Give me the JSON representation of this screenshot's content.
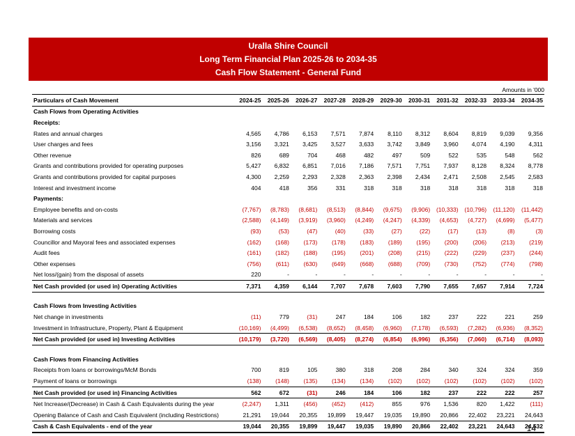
{
  "banner": {
    "line1": "Uralla Shire Council",
    "line2": "Long Term Financial Plan 2025-26 to 2034-35",
    "line3": "Cash Flow Statement - General Fund"
  },
  "units_note": "Amounts in '000",
  "columns": [
    "Particulars of Cash Movement",
    "2024-25",
    "2025-26",
    "2026-27",
    "2027-28",
    "2028-29",
    "2029-30",
    "2030-31",
    "2031-32",
    "2032-33",
    "2033-34",
    "2034-35"
  ],
  "rows": [
    {
      "type": "heading",
      "label": "Cash Flows from Operating Activities"
    },
    {
      "type": "heading",
      "label": "Receipts:"
    },
    {
      "type": "data",
      "label": "Rates and annual charges",
      "values": [
        "4,565",
        "4,786",
        "6,153",
        "7,571",
        "7,874",
        "8,110",
        "8,312",
        "8,604",
        "8,819",
        "9,039",
        "9,356"
      ]
    },
    {
      "type": "data",
      "label": "User charges and fees",
      "values": [
        "3,156",
        "3,321",
        "3,425",
        "3,527",
        "3,633",
        "3,742",
        "3,849",
        "3,960",
        "4,074",
        "4,190",
        "4,311"
      ]
    },
    {
      "type": "data",
      "label": "Other revenue",
      "values": [
        "826",
        "689",
        "704",
        "468",
        "482",
        "497",
        "509",
        "522",
        "535",
        "548",
        "562"
      ]
    },
    {
      "type": "data",
      "label": "Grants and contributions provided for operating purposes",
      "values": [
        "5,427",
        "6,832",
        "6,851",
        "7,016",
        "7,186",
        "7,571",
        "7,751",
        "7,937",
        "8,128",
        "8,324",
        "8,778"
      ]
    },
    {
      "type": "data",
      "label": "Grants and contributions provided for capital purposes",
      "values": [
        "4,300",
        "2,259",
        "2,293",
        "2,328",
        "2,363",
        "2,398",
        "2,434",
        "2,471",
        "2,508",
        "2,545",
        "2,583"
      ]
    },
    {
      "type": "data",
      "label": "Interest and investment income",
      "values": [
        "404",
        "418",
        "356",
        "331",
        "318",
        "318",
        "318",
        "318",
        "318",
        "318",
        "318"
      ]
    },
    {
      "type": "heading",
      "label": "Payments:"
    },
    {
      "type": "data",
      "label": "Employee benefits and on-costs",
      "values": [
        "(7,767)",
        "(8,783)",
        "(8,681)",
        "(8,513)",
        "(8,844)",
        "(9,675)",
        "(9,906)",
        "(10,333)",
        "(10,796)",
        "(11,120)",
        "(11,442)"
      ]
    },
    {
      "type": "data",
      "label": "Materials and services",
      "values": [
        "(2,588)",
        "(4,149)",
        "(3,919)",
        "(3,960)",
        "(4,249)",
        "(4,247)",
        "(4,339)",
        "(4,653)",
        "(4,727)",
        "(4,699)",
        "(5,477)"
      ]
    },
    {
      "type": "data",
      "label": "Borrowing costs",
      "values": [
        "(93)",
        "(53)",
        "(47)",
        "(40)",
        "(33)",
        "(27)",
        "(22)",
        "(17)",
        "(13)",
        "(8)",
        "(3)"
      ]
    },
    {
      "type": "data",
      "label": "Councillor and Mayoral fees and associated expenses",
      "values": [
        "(162)",
        "(168)",
        "(173)",
        "(178)",
        "(183)",
        "(189)",
        "(195)",
        "(200)",
        "(206)",
        "(213)",
        "(219)"
      ]
    },
    {
      "type": "data",
      "label": "Audit fees",
      "values": [
        "(161)",
        "(182)",
        "(188)",
        "(195)",
        "(201)",
        "(208)",
        "(215)",
        "(222)",
        "(229)",
        "(237)",
        "(244)"
      ]
    },
    {
      "type": "data",
      "label": "Other expenses",
      "values": [
        "(756)",
        "(611)",
        "(630)",
        "(649)",
        "(668)",
        "(688)",
        "(709)",
        "(730)",
        "(752)",
        "(774)",
        "(798)"
      ]
    },
    {
      "type": "data",
      "label": "Net loss/(gain) from the disposal of assets",
      "values": [
        "220",
        "-",
        "-",
        "-",
        "-",
        "-",
        "-",
        "-",
        "-",
        "-",
        "-"
      ]
    },
    {
      "type": "total",
      "label": "Net Cash provided (or used in) Operating Activities",
      "values": [
        "7,371",
        "4,359",
        "6,144",
        "7,707",
        "7,678",
        "7,603",
        "7,790",
        "7,655",
        "7,657",
        "7,914",
        "7,724"
      ]
    },
    {
      "type": "spacer"
    },
    {
      "type": "heading",
      "label": "Cash Flows from Investing Activities"
    },
    {
      "type": "data",
      "label": "Net change in investments",
      "values": [
        "(11)",
        "779",
        "(31)",
        "247",
        "184",
        "106",
        "182",
        "237",
        "222",
        "221",
        "259"
      ]
    },
    {
      "type": "data",
      "label": "Investment in Infrastructure, Property, Plant & Equipment",
      "values": [
        "(10,169)",
        "(4,499)",
        "(6,538)",
        "(8,652)",
        "(8,458)",
        "(6,960)",
        "(7,178)",
        "(6,593)",
        "(7,282)",
        "(6,936)",
        "(8,352)"
      ]
    },
    {
      "type": "total",
      "label": "Net Cash provided (or used in) Investing Activities",
      "values": [
        "(10,179)",
        "(3,720)",
        "(6,569)",
        "(8,405)",
        "(8,274)",
        "(6,854)",
        "(6,996)",
        "(6,356)",
        "(7,060)",
        "(6,714)",
        "(8,093)"
      ]
    },
    {
      "type": "spacer"
    },
    {
      "type": "heading",
      "label": "Cash Flows from Financing Activities"
    },
    {
      "type": "data",
      "label": "Receipts from loans or borrowings/McM Bonds",
      "values": [
        "700",
        "819",
        "105",
        "380",
        "318",
        "208",
        "284",
        "340",
        "324",
        "324",
        "359"
      ]
    },
    {
      "type": "data",
      "label": "Payment of loans or borrowings",
      "values": [
        "(138)",
        "(148)",
        "(135)",
        "(134)",
        "(134)",
        "(102)",
        "(102)",
        "(102)",
        "(102)",
        "(102)",
        "(102)"
      ]
    },
    {
      "type": "total",
      "label": "Net Cash provided (or used in) Financing Activities",
      "values": [
        "562",
        "672",
        "(31)",
        "246",
        "184",
        "106",
        "182",
        "237",
        "222",
        "222",
        "257"
      ]
    },
    {
      "type": "data",
      "label": "Net Increase/(Decrease) in Cash & Cash Equivalents during the year",
      "values": [
        "(2,247)",
        "1,311",
        "(456)",
        "(452)",
        "(412)",
        "855",
        "976",
        "1,536",
        "820",
        "1,422",
        "(111)"
      ]
    },
    {
      "type": "data",
      "label": "Opening Balance of Cash and Cash Equivalent (including Restrictions)",
      "values": [
        "21,291",
        "19,044",
        "20,355",
        "19,899",
        "19,447",
        "19,035",
        "19,890",
        "20,866",
        "22,402",
        "23,221",
        "24,643"
      ]
    },
    {
      "type": "final",
      "label": "Cash & Cash Equivalents - end of the year",
      "values": [
        "19,044",
        "20,355",
        "19,899",
        "19,447",
        "19,035",
        "19,890",
        "20,866",
        "22,402",
        "23,221",
        "24,643",
        "24,532"
      ]
    }
  ],
  "page_number": "14",
  "colors": {
    "banner_bg": "#c00000",
    "banner_text": "#ffffff",
    "negative": "#c00000"
  }
}
